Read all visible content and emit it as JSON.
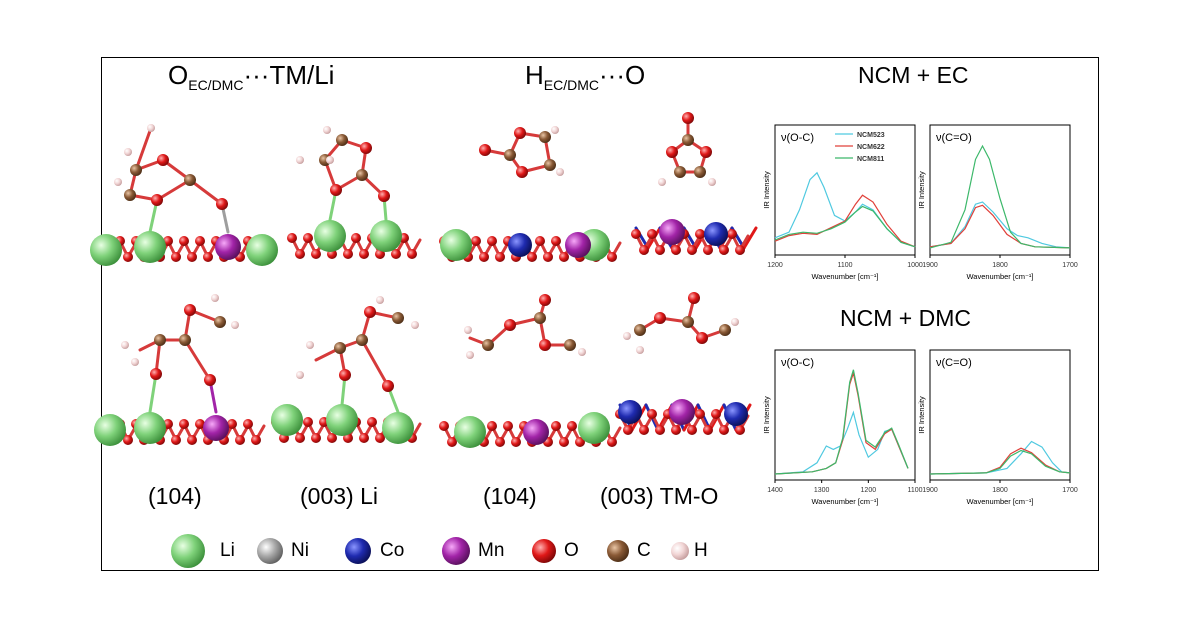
{
  "headers": {
    "left": {
      "main": "O",
      "sub": "EC/DMC",
      "rest": "···TM/Li"
    },
    "mid": {
      "main": "H",
      "sub": "EC/DMC",
      "rest": "···O"
    }
  },
  "facets": [
    "(104)",
    "(003) Li",
    "(104)",
    "(003) TM-O"
  ],
  "elements_legend": [
    {
      "label": "Li",
      "color": "#7fd27a"
    },
    {
      "label": "Ni",
      "color": "#a9a9a9"
    },
    {
      "label": "Co",
      "color": "#1f2bb0"
    },
    {
      "label": "Mn",
      "color": "#a224a8"
    },
    {
      "label": "O",
      "color": "#e01818"
    },
    {
      "label": "C",
      "color": "#8a5a36"
    },
    {
      "label": "H",
      "color": "#f2d6d6"
    }
  ],
  "sections": [
    {
      "title": "NCM + EC"
    },
    {
      "title": "NCM + DMC"
    }
  ],
  "chart_data": [
    {
      "type": "line",
      "panel_label": "ν(O-C)",
      "xlabel": "Wavenumber [cm⁻¹]",
      "ylabel": "IR Intensity",
      "x_ticks": [
        "1200",
        "1100",
        "1000"
      ],
      "xlim": [
        1200,
        1000
      ],
      "legend": [
        "NCM523",
        "NCM622",
        "NCM811"
      ],
      "series": [
        {
          "name": "NCM523",
          "color": "#4fc9e0",
          "points": [
            [
              1200,
              0.1
            ],
            [
              1180,
              0.15
            ],
            [
              1165,
              0.35
            ],
            [
              1150,
              0.62
            ],
            [
              1140,
              0.68
            ],
            [
              1130,
              0.55
            ],
            [
              1115,
              0.3
            ],
            [
              1100,
              0.25
            ],
            [
              1085,
              0.33
            ],
            [
              1075,
              0.4
            ],
            [
              1060,
              0.35
            ],
            [
              1040,
              0.18
            ],
            [
              1020,
              0.06
            ],
            [
              1000,
              0.02
            ]
          ]
        },
        {
          "name": "NCM622",
          "color": "#e0403a",
          "points": [
            [
              1200,
              0.07
            ],
            [
              1180,
              0.12
            ],
            [
              1160,
              0.14
            ],
            [
              1140,
              0.13
            ],
            [
              1120,
              0.19
            ],
            [
              1100,
              0.25
            ],
            [
              1085,
              0.4
            ],
            [
              1075,
              0.48
            ],
            [
              1060,
              0.42
            ],
            [
              1040,
              0.22
            ],
            [
              1020,
              0.07
            ],
            [
              1000,
              0.02
            ]
          ]
        },
        {
          "name": "NCM811",
          "color": "#3cb86a",
          "points": [
            [
              1200,
              0.08
            ],
            [
              1180,
              0.13
            ],
            [
              1160,
              0.15
            ],
            [
              1140,
              0.14
            ],
            [
              1120,
              0.18
            ],
            [
              1100,
              0.24
            ],
            [
              1085,
              0.33
            ],
            [
              1075,
              0.38
            ],
            [
              1060,
              0.34
            ],
            [
              1040,
              0.18
            ],
            [
              1020,
              0.06
            ],
            [
              1000,
              0.02
            ]
          ]
        }
      ]
    },
    {
      "type": "line",
      "panel_label": "ν(C=O)",
      "xlabel": "Wavenumber [cm⁻¹]",
      "ylabel": "IR Intensity",
      "x_ticks": [
        "1900",
        "1800",
        "1700"
      ],
      "xlim": [
        1900,
        1700
      ],
      "series": [
        {
          "name": "NCM523",
          "color": "#4fc9e0",
          "points": [
            [
              1900,
              0.02
            ],
            [
              1870,
              0.05
            ],
            [
              1850,
              0.2
            ],
            [
              1835,
              0.4
            ],
            [
              1825,
              0.42
            ],
            [
              1810,
              0.33
            ],
            [
              1790,
              0.18
            ],
            [
              1775,
              0.12
            ],
            [
              1760,
              0.1
            ],
            [
              1740,
              0.05
            ],
            [
              1720,
              0.02
            ],
            [
              1700,
              0.01
            ]
          ]
        },
        {
          "name": "NCM622",
          "color": "#e0403a",
          "points": [
            [
              1900,
              0.02
            ],
            [
              1870,
              0.05
            ],
            [
              1850,
              0.18
            ],
            [
              1835,
              0.37
            ],
            [
              1825,
              0.39
            ],
            [
              1810,
              0.3
            ],
            [
              1790,
              0.13
            ],
            [
              1770,
              0.05
            ],
            [
              1750,
              0.02
            ],
            [
              1700,
              0.01
            ]
          ]
        },
        {
          "name": "NCM811",
          "color": "#3cb86a",
          "points": [
            [
              1900,
              0.01
            ],
            [
              1870,
              0.06
            ],
            [
              1850,
              0.35
            ],
            [
              1835,
              0.8
            ],
            [
              1825,
              0.92
            ],
            [
              1815,
              0.8
            ],
            [
              1800,
              0.45
            ],
            [
              1785,
              0.15
            ],
            [
              1770,
              0.05
            ],
            [
              1750,
              0.02
            ],
            [
              1700,
              0.01
            ]
          ]
        }
      ]
    },
    {
      "type": "line",
      "panel_label": "ν(O-C)",
      "xlabel": "Wavenumber [cm⁻¹]",
      "ylabel": "IR Intensity",
      "x_ticks": [
        "1400",
        "1300",
        "1200",
        "1100"
      ],
      "xlim": [
        1400,
        1100
      ],
      "series": [
        {
          "name": "NCM523",
          "color": "#4fc9e0",
          "points": [
            [
              1400,
              0.0
            ],
            [
              1340,
              0.02
            ],
            [
              1310,
              0.1
            ],
            [
              1290,
              0.25
            ],
            [
              1275,
              0.22
            ],
            [
              1260,
              0.25
            ],
            [
              1245,
              0.4
            ],
            [
              1232,
              0.55
            ],
            [
              1220,
              0.35
            ],
            [
              1200,
              0.15
            ],
            [
              1180,
              0.22
            ],
            [
              1165,
              0.38
            ],
            [
              1150,
              0.4
            ],
            [
              1135,
              0.25
            ],
            [
              1115,
              0.05
            ]
          ]
        },
        {
          "name": "NCM622",
          "color": "#e0403a",
          "points": [
            [
              1400,
              0.0
            ],
            [
              1320,
              0.02
            ],
            [
              1290,
              0.05
            ],
            [
              1270,
              0.1
            ],
            [
              1255,
              0.3
            ],
            [
              1240,
              0.8
            ],
            [
              1232,
              0.9
            ],
            [
              1222,
              0.7
            ],
            [
              1205,
              0.28
            ],
            [
              1185,
              0.22
            ],
            [
              1165,
              0.36
            ],
            [
              1150,
              0.4
            ],
            [
              1135,
              0.25
            ],
            [
              1115,
              0.05
            ]
          ]
        },
        {
          "name": "NCM811",
          "color": "#3cb86a",
          "points": [
            [
              1400,
              0.0
            ],
            [
              1320,
              0.02
            ],
            [
              1290,
              0.05
            ],
            [
              1270,
              0.1
            ],
            [
              1255,
              0.32
            ],
            [
              1240,
              0.82
            ],
            [
              1232,
              0.93
            ],
            [
              1222,
              0.72
            ],
            [
              1205,
              0.3
            ],
            [
              1185,
              0.24
            ],
            [
              1165,
              0.37
            ],
            [
              1150,
              0.41
            ],
            [
              1135,
              0.26
            ],
            [
              1115,
              0.05
            ]
          ]
        }
      ]
    },
    {
      "type": "line",
      "panel_label": "ν(C=O)",
      "xlabel": "Wavenumber [cm⁻¹]",
      "ylabel": "IR Intensity",
      "x_ticks": [
        "1900",
        "1800",
        "1700"
      ],
      "xlim": [
        1900,
        1700
      ],
      "series": [
        {
          "name": "NCM523",
          "color": "#4fc9e0",
          "points": [
            [
              1900,
              0.0
            ],
            [
              1820,
              0.01
            ],
            [
              1790,
              0.05
            ],
            [
              1770,
              0.18
            ],
            [
              1755,
              0.29
            ],
            [
              1740,
              0.24
            ],
            [
              1725,
              0.1
            ],
            [
              1712,
              0.02
            ],
            [
              1700,
              0.01
            ]
          ]
        },
        {
          "name": "NCM622",
          "color": "#e0403a",
          "points": [
            [
              1900,
              0.0
            ],
            [
              1820,
              0.01
            ],
            [
              1800,
              0.06
            ],
            [
              1785,
              0.18
            ],
            [
              1770,
              0.23
            ],
            [
              1755,
              0.19
            ],
            [
              1735,
              0.08
            ],
            [
              1715,
              0.02
            ],
            [
              1700,
              0.01
            ]
          ]
        },
        {
          "name": "NCM811",
          "color": "#3cb86a",
          "points": [
            [
              1900,
              0.0
            ],
            [
              1820,
              0.01
            ],
            [
              1800,
              0.05
            ],
            [
              1785,
              0.16
            ],
            [
              1770,
              0.21
            ],
            [
              1755,
              0.18
            ],
            [
              1735,
              0.07
            ],
            [
              1715,
              0.02
            ],
            [
              1700,
              0.01
            ]
          ]
        }
      ]
    }
  ]
}
